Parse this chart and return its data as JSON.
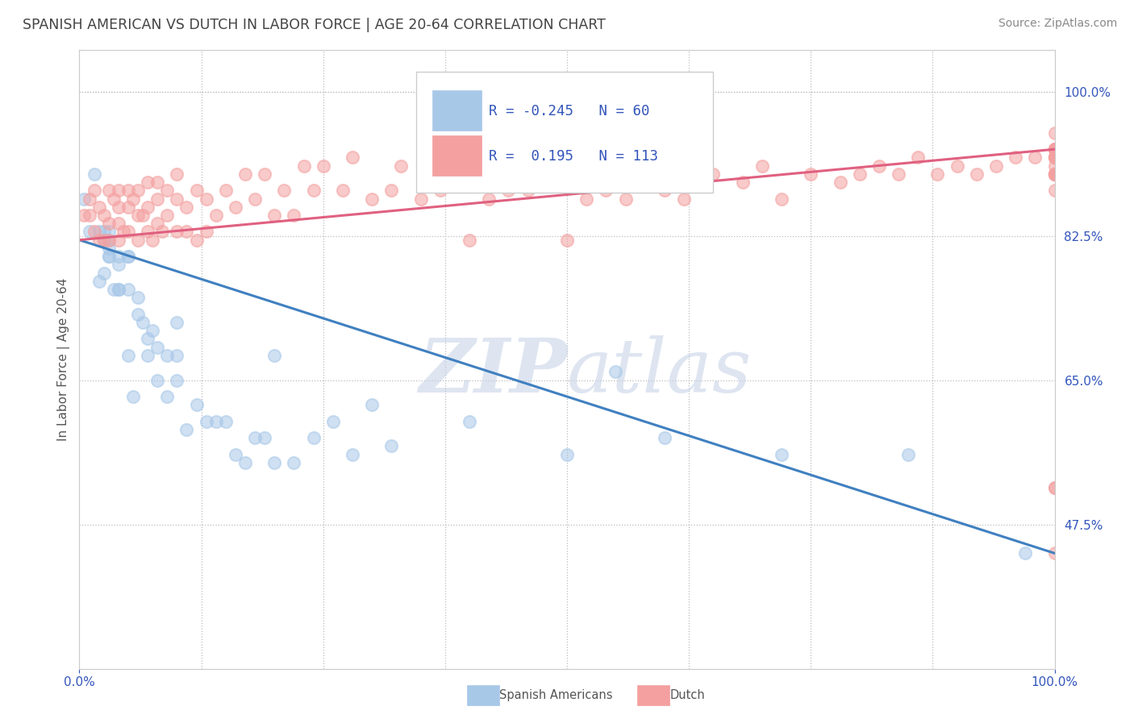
{
  "title": "SPANISH AMERICAN VS DUTCH IN LABOR FORCE | AGE 20-64 CORRELATION CHART",
  "source": "Source: ZipAtlas.com",
  "ylabel": "In Labor Force | Age 20-64",
  "xlim": [
    0.0,
    1.0
  ],
  "ylim": [
    0.3,
    1.05
  ],
  "right_ytick_vals": [
    0.475,
    0.65,
    0.825,
    1.0
  ],
  "right_ytick_labels": [
    "47.5%",
    "65.0%",
    "82.5%",
    "100.0%"
  ],
  "blue_R": -0.245,
  "blue_N": 60,
  "pink_R": 0.195,
  "pink_N": 113,
  "blue_color": "#a8c8e8",
  "pink_color": "#f4a0a0",
  "blue_line_color": "#4080c0",
  "pink_line_color": "#e06080",
  "blue_line_start_y": 0.82,
  "blue_line_end_y": 0.44,
  "pink_line_start_y": 0.82,
  "pink_line_end_y": 0.93,
  "title_color": "#444444",
  "axis_color": "#bbbbbb",
  "label_color": "#3355bb",
  "watermark_color": "#c8d4e8",
  "watermark_alpha": 0.6,
  "legend_text_color": "#3355bb",
  "source_color": "#888888",
  "ylabel_color": "#555555",
  "grid_color": "#bbbbbb",
  "blue_scatter_x": [
    0.005,
    0.01,
    0.015,
    0.02,
    0.02,
    0.025,
    0.025,
    0.025,
    0.03,
    0.03,
    0.03,
    0.03,
    0.03,
    0.035,
    0.04,
    0.04,
    0.04,
    0.04,
    0.05,
    0.05,
    0.05,
    0.05,
    0.055,
    0.06,
    0.06,
    0.065,
    0.07,
    0.07,
    0.075,
    0.08,
    0.08,
    0.09,
    0.09,
    0.1,
    0.1,
    0.1,
    0.11,
    0.12,
    0.13,
    0.14,
    0.15,
    0.16,
    0.17,
    0.18,
    0.19,
    0.2,
    0.2,
    0.22,
    0.24,
    0.26,
    0.28,
    0.3,
    0.32,
    0.4,
    0.5,
    0.55,
    0.6,
    0.72,
    0.85,
    0.97
  ],
  "blue_scatter_y": [
    0.87,
    0.83,
    0.9,
    0.77,
    0.83,
    0.82,
    0.83,
    0.78,
    0.82,
    0.8,
    0.81,
    0.8,
    0.83,
    0.76,
    0.8,
    0.76,
    0.79,
    0.76,
    0.8,
    0.8,
    0.68,
    0.76,
    0.63,
    0.75,
    0.73,
    0.72,
    0.7,
    0.68,
    0.71,
    0.69,
    0.65,
    0.68,
    0.63,
    0.68,
    0.65,
    0.72,
    0.59,
    0.62,
    0.6,
    0.6,
    0.6,
    0.56,
    0.55,
    0.58,
    0.58,
    0.55,
    0.68,
    0.55,
    0.58,
    0.6,
    0.56,
    0.62,
    0.57,
    0.6,
    0.56,
    0.66,
    0.58,
    0.56,
    0.56,
    0.44
  ],
  "pink_scatter_x": [
    0.005,
    0.01,
    0.01,
    0.015,
    0.015,
    0.02,
    0.02,
    0.025,
    0.025,
    0.03,
    0.03,
    0.03,
    0.035,
    0.04,
    0.04,
    0.04,
    0.04,
    0.045,
    0.05,
    0.05,
    0.05,
    0.055,
    0.06,
    0.06,
    0.06,
    0.065,
    0.07,
    0.07,
    0.07,
    0.075,
    0.08,
    0.08,
    0.08,
    0.085,
    0.09,
    0.09,
    0.1,
    0.1,
    0.1,
    0.11,
    0.11,
    0.12,
    0.12,
    0.13,
    0.13,
    0.14,
    0.15,
    0.16,
    0.17,
    0.18,
    0.19,
    0.2,
    0.21,
    0.22,
    0.23,
    0.24,
    0.25,
    0.27,
    0.28,
    0.3,
    0.32,
    0.33,
    0.35,
    0.37,
    0.4,
    0.42,
    0.44,
    0.46,
    0.48,
    0.5,
    0.52,
    0.54,
    0.56,
    0.58,
    0.6,
    0.62,
    0.65,
    0.68,
    0.7,
    0.72,
    0.75,
    0.78,
    0.8,
    0.82,
    0.84,
    0.86,
    0.88,
    0.9,
    0.92,
    0.94,
    0.96,
    0.98,
    1.0,
    1.0,
    1.0,
    1.0,
    1.0,
    1.0,
    1.0,
    1.0,
    1.0,
    1.0,
    1.0,
    1.0,
    1.0,
    1.0,
    1.0,
    1.0,
    1.0,
    1.0,
    1.0,
    1.0,
    1.0
  ],
  "pink_scatter_y": [
    0.85,
    0.85,
    0.87,
    0.83,
    0.88,
    0.82,
    0.86,
    0.82,
    0.85,
    0.82,
    0.84,
    0.88,
    0.87,
    0.82,
    0.84,
    0.86,
    0.88,
    0.83,
    0.83,
    0.86,
    0.88,
    0.87,
    0.82,
    0.85,
    0.88,
    0.85,
    0.83,
    0.86,
    0.89,
    0.82,
    0.84,
    0.87,
    0.89,
    0.83,
    0.85,
    0.88,
    0.83,
    0.87,
    0.9,
    0.83,
    0.86,
    0.82,
    0.88,
    0.83,
    0.87,
    0.85,
    0.88,
    0.86,
    0.9,
    0.87,
    0.9,
    0.85,
    0.88,
    0.85,
    0.91,
    0.88,
    0.91,
    0.88,
    0.92,
    0.87,
    0.88,
    0.91,
    0.87,
    0.88,
    0.82,
    0.87,
    0.88,
    0.88,
    0.9,
    0.82,
    0.87,
    0.88,
    0.87,
    0.9,
    0.88,
    0.87,
    0.9,
    0.89,
    0.91,
    0.87,
    0.9,
    0.89,
    0.9,
    0.91,
    0.9,
    0.92,
    0.9,
    0.91,
    0.9,
    0.91,
    0.92,
    0.92,
    0.93,
    0.92,
    0.9,
    0.91,
    0.9,
    0.92,
    0.93,
    0.9,
    0.92,
    0.93,
    0.9,
    0.52,
    0.52,
    0.88,
    0.9,
    0.92,
    0.93,
    0.95,
    0.92,
    0.44,
    0.9
  ]
}
